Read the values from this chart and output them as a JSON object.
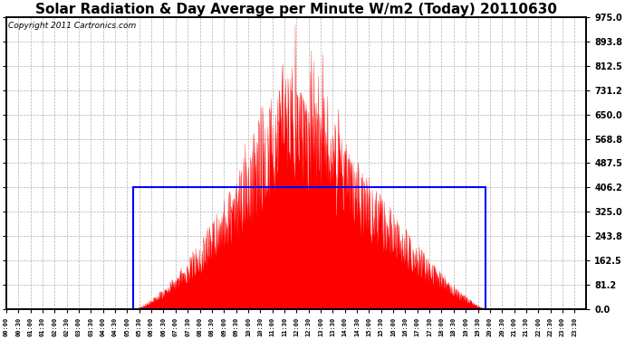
{
  "title": "Solar Radiation & Day Average per Minute W/m2 (Today) 20110630",
  "copyright": "Copyright 2011 Cartronics.com",
  "ylim": [
    0.0,
    975.0
  ],
  "yticks": [
    0.0,
    81.2,
    162.5,
    243.8,
    325.0,
    406.2,
    487.5,
    568.8,
    650.0,
    731.2,
    812.5,
    893.8,
    975.0
  ],
  "ytick_labels": [
    "0.0",
    "81.2",
    "162.5",
    "243.8",
    "325.0",
    "406.2",
    "487.5",
    "568.8",
    "650.0",
    "731.2",
    "812.5",
    "893.8",
    "975.0"
  ],
  "background_color": "#ffffff",
  "plot_bg_color": "#ffffff",
  "grid_color": "#b0b0b0",
  "solar_color": "#ff0000",
  "avg_box_color": "#0000ff",
  "avg_value": 406.2,
  "sunrise_min": 315,
  "sunset_min": 1190,
  "n_minutes": 1440,
  "title_fontsize": 11,
  "copyright_fontsize": 6.5,
  "tick_every_min": 30
}
